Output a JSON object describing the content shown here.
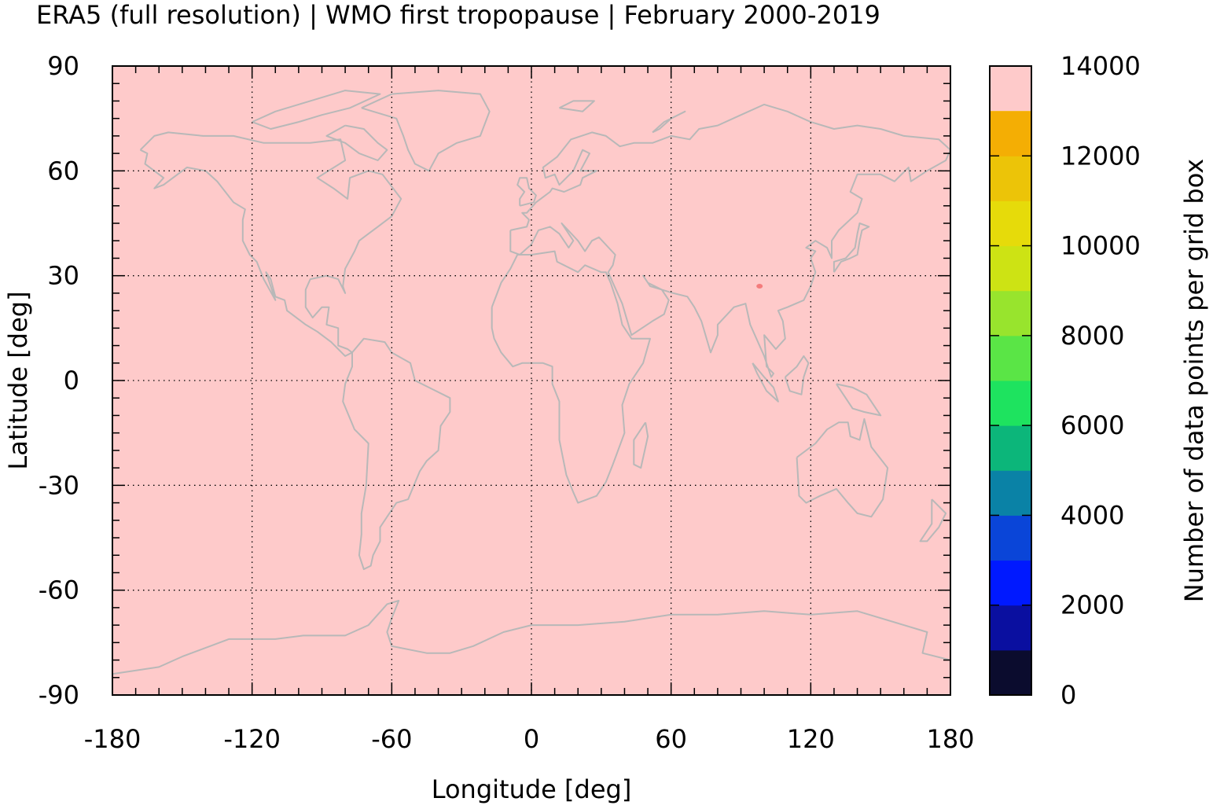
{
  "title": "ERA5 (full resolution) | WMO first tropopause | February 2000-2019",
  "chart_data": {
    "type": "heatmap",
    "title": "ERA5 (full resolution) | WMO first tropopause | February 2000-2019",
    "xlabel": "Longitude [deg]",
    "ylabel": "Latitude [deg]",
    "xlim": [
      -180,
      180
    ],
    "ylim": [
      -90,
      90
    ],
    "xticks": [
      "-180",
      "-120",
      "-60",
      "0",
      "60",
      "120",
      "180"
    ],
    "yticks": [
      "90",
      "60",
      "30",
      "0",
      "-30",
      "-60",
      "-90"
    ],
    "grid": true,
    "background_value_range": [
      13000,
      14000
    ],
    "background_color": "#fecaca",
    "coastline_color": "#b8b8b8",
    "anomalies": [
      {
        "lon": 98,
        "lat": 27,
        "value_range": [
          12000,
          13000
        ],
        "color": "#f47c7c"
      }
    ],
    "colorbar": {
      "label": "Number of data points per grid box",
      "min": 0,
      "max": 14000,
      "ticks": [
        "0",
        "2000",
        "4000",
        "6000",
        "8000",
        "10000",
        "12000",
        "14000"
      ],
      "levels": [
        {
          "from": 0,
          "to": 1000,
          "color": "#0b0c2e"
        },
        {
          "from": 1000,
          "to": 2000,
          "color": "#0a0fa0"
        },
        {
          "from": 2000,
          "to": 3000,
          "color": "#0019ff"
        },
        {
          "from": 3000,
          "to": 4000,
          "color": "#0a45d8"
        },
        {
          "from": 4000,
          "to": 5000,
          "color": "#0a82a6"
        },
        {
          "from": 5000,
          "to": 6000,
          "color": "#0cb67a"
        },
        {
          "from": 6000,
          "to": 7000,
          "color": "#1ee35f"
        },
        {
          "from": 7000,
          "to": 8000,
          "color": "#5ae546"
        },
        {
          "from": 8000,
          "to": 9000,
          "color": "#98e42d"
        },
        {
          "from": 9000,
          "to": 10000,
          "color": "#cde314"
        },
        {
          "from": 10000,
          "to": 11000,
          "color": "#e6db0a"
        },
        {
          "from": 11000,
          "to": 12000,
          "color": "#ecc408"
        },
        {
          "from": 12000,
          "to": 13000,
          "color": "#f4ae04"
        },
        {
          "from": 13000,
          "to": 14000,
          "color": "#fa9f00"
        }
      ]
    }
  }
}
